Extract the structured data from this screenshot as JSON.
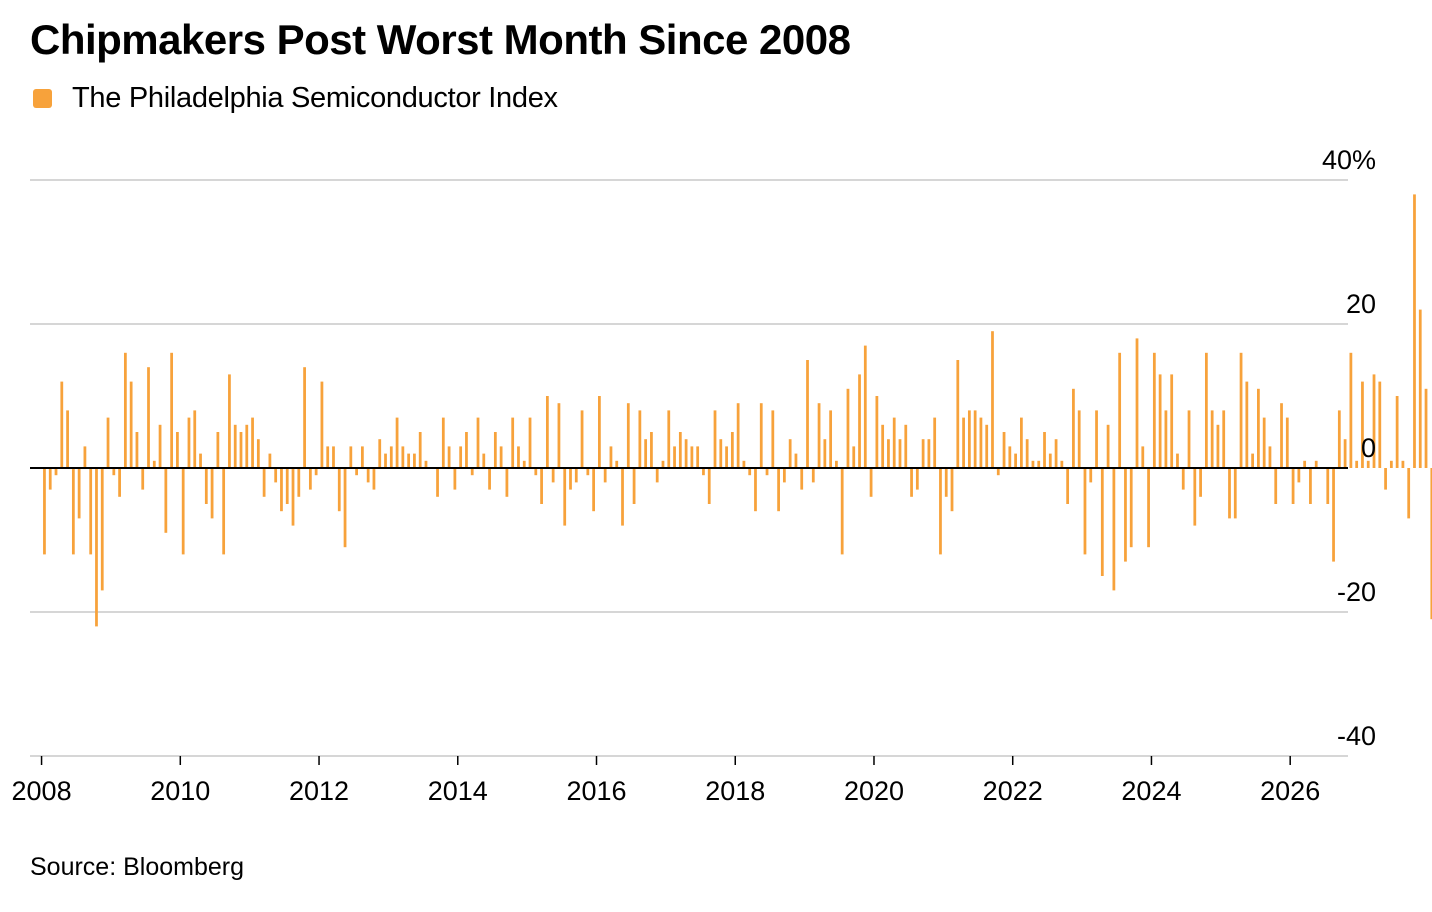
{
  "colors": {
    "bar": "#f7a23b",
    "grid": "#d6d6d6",
    "zero_line": "#000000",
    "axis": "#999999"
  },
  "chart_data": {
    "type": "bar",
    "title": "Chipmakers Post Worst Month Since 2008",
    "legend": [
      "The Philadelphia Semiconductor Index"
    ],
    "legend_placement": "top-left",
    "source": "Source: Bloomberg",
    "grid": true,
    "xlim": [
      "2007-11-01",
      "2026-11-01"
    ],
    "ylim": [
      -40,
      40
    ],
    "y_ticks": [
      40,
      20,
      0,
      -20,
      -40
    ],
    "y_tick_labels": [
      "40%",
      "20",
      "0",
      "-20",
      "-40"
    ],
    "x_ticks": [
      2008,
      2010,
      2012,
      2014,
      2016,
      2018,
      2020,
      2022,
      2024,
      2026
    ],
    "x_tick_labels": [
      "2008",
      "2010",
      "2012",
      "2014",
      "2016",
      "2018",
      "2020",
      "2022",
      "2024",
      "2026"
    ],
    "series": [
      {
        "name": "The Philadelphia Semiconductor Index",
        "start": "2008-01",
        "frequency": "monthly",
        "values": [
          -12,
          -3,
          -1,
          12,
          8,
          -12,
          -7,
          3,
          -12,
          -22,
          -17,
          7,
          -1,
          -4,
          16,
          12,
          5,
          -3,
          14,
          1,
          6,
          -9,
          16,
          5,
          -12,
          7,
          8,
          2,
          -5,
          -7,
          5,
          -12,
          13,
          6,
          5,
          6,
          7,
          4,
          -4,
          2,
          -2,
          -6,
          -5,
          -8,
          -4,
          14,
          -3,
          -1,
          12,
          3,
          3,
          -6,
          -11,
          3,
          -1,
          3,
          -2,
          -3,
          4,
          2,
          3,
          7,
          3,
          2,
          2,
          5,
          1,
          0,
          -4,
          7,
          3,
          -3,
          3,
          5,
          -1,
          7,
          2,
          -3,
          5,
          3,
          -4,
          7,
          3,
          1,
          7,
          -1,
          -5,
          10,
          -2,
          9,
          -8,
          -3,
          -2,
          8,
          -1,
          -6,
          10,
          -2,
          3,
          1,
          -8,
          9,
          -5,
          8,
          4,
          5,
          -2,
          1,
          8,
          3,
          5,
          4,
          3,
          3,
          -1,
          -5,
          8,
          4,
          3,
          5,
          9,
          1,
          -1,
          -6,
          9,
          -1,
          8,
          -6,
          -2,
          4,
          2,
          -3,
          15,
          -2,
          9,
          4,
          8,
          1,
          -12,
          11,
          3,
          13,
          17,
          -4,
          10,
          6,
          4,
          7,
          4,
          6,
          -4,
          -3,
          4,
          4,
          7,
          -12,
          -4,
          -6,
          15,
          7,
          8,
          8,
          7,
          6,
          19,
          -1,
          5,
          3,
          2,
          7,
          4,
          1,
          1,
          5,
          2,
          4,
          1,
          -5,
          11,
          8,
          -12,
          -2,
          8,
          -15,
          6,
          -17,
          16,
          -13,
          -11,
          18,
          3,
          -11,
          16,
          13,
          8,
          13,
          2,
          -3,
          8,
          -8,
          -4,
          16,
          8,
          6,
          8,
          -7,
          -7,
          16,
          12,
          2,
          11,
          7,
          3,
          -5,
          9,
          7,
          -5,
          -2,
          1,
          -5,
          1,
          0,
          -5,
          -13,
          8,
          4,
          16,
          1,
          12,
          1,
          13,
          12,
          -3,
          1,
          10,
          1,
          -7,
          38,
          22,
          11,
          -21
        ]
      }
    ]
  }
}
